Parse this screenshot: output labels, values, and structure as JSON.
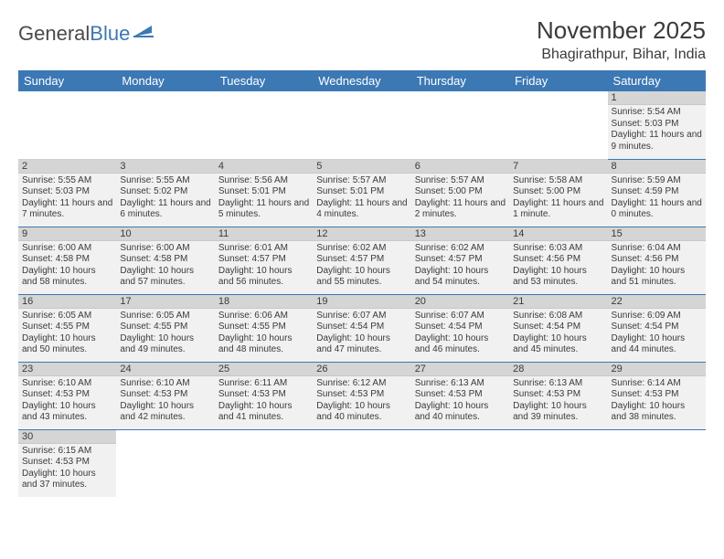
{
  "logo": {
    "text1": "General",
    "text2": "Blue"
  },
  "title": "November 2025",
  "location": "Bhagirathpur, Bihar, India",
  "dayHeaders": [
    "Sunday",
    "Monday",
    "Tuesday",
    "Wednesday",
    "Thursday",
    "Friday",
    "Saturday"
  ],
  "colors": {
    "headerBg": "#3c78b4",
    "cellBg": "#f1f1f1",
    "dayNumBg": "#d5d5d5",
    "border": "#3c78b4"
  },
  "weeks": [
    [
      null,
      null,
      null,
      null,
      null,
      null,
      {
        "n": "1",
        "sr": "Sunrise: 5:54 AM",
        "ss": "Sunset: 5:03 PM",
        "dl": "Daylight: 11 hours and 9 minutes."
      }
    ],
    [
      {
        "n": "2",
        "sr": "Sunrise: 5:55 AM",
        "ss": "Sunset: 5:03 PM",
        "dl": "Daylight: 11 hours and 7 minutes."
      },
      {
        "n": "3",
        "sr": "Sunrise: 5:55 AM",
        "ss": "Sunset: 5:02 PM",
        "dl": "Daylight: 11 hours and 6 minutes."
      },
      {
        "n": "4",
        "sr": "Sunrise: 5:56 AM",
        "ss": "Sunset: 5:01 PM",
        "dl": "Daylight: 11 hours and 5 minutes."
      },
      {
        "n": "5",
        "sr": "Sunrise: 5:57 AM",
        "ss": "Sunset: 5:01 PM",
        "dl": "Daylight: 11 hours and 4 minutes."
      },
      {
        "n": "6",
        "sr": "Sunrise: 5:57 AM",
        "ss": "Sunset: 5:00 PM",
        "dl": "Daylight: 11 hours and 2 minutes."
      },
      {
        "n": "7",
        "sr": "Sunrise: 5:58 AM",
        "ss": "Sunset: 5:00 PM",
        "dl": "Daylight: 11 hours and 1 minute."
      },
      {
        "n": "8",
        "sr": "Sunrise: 5:59 AM",
        "ss": "Sunset: 4:59 PM",
        "dl": "Daylight: 11 hours and 0 minutes."
      }
    ],
    [
      {
        "n": "9",
        "sr": "Sunrise: 6:00 AM",
        "ss": "Sunset: 4:58 PM",
        "dl": "Daylight: 10 hours and 58 minutes."
      },
      {
        "n": "10",
        "sr": "Sunrise: 6:00 AM",
        "ss": "Sunset: 4:58 PM",
        "dl": "Daylight: 10 hours and 57 minutes."
      },
      {
        "n": "11",
        "sr": "Sunrise: 6:01 AM",
        "ss": "Sunset: 4:57 PM",
        "dl": "Daylight: 10 hours and 56 minutes."
      },
      {
        "n": "12",
        "sr": "Sunrise: 6:02 AM",
        "ss": "Sunset: 4:57 PM",
        "dl": "Daylight: 10 hours and 55 minutes."
      },
      {
        "n": "13",
        "sr": "Sunrise: 6:02 AM",
        "ss": "Sunset: 4:57 PM",
        "dl": "Daylight: 10 hours and 54 minutes."
      },
      {
        "n": "14",
        "sr": "Sunrise: 6:03 AM",
        "ss": "Sunset: 4:56 PM",
        "dl": "Daylight: 10 hours and 53 minutes."
      },
      {
        "n": "15",
        "sr": "Sunrise: 6:04 AM",
        "ss": "Sunset: 4:56 PM",
        "dl": "Daylight: 10 hours and 51 minutes."
      }
    ],
    [
      {
        "n": "16",
        "sr": "Sunrise: 6:05 AM",
        "ss": "Sunset: 4:55 PM",
        "dl": "Daylight: 10 hours and 50 minutes."
      },
      {
        "n": "17",
        "sr": "Sunrise: 6:05 AM",
        "ss": "Sunset: 4:55 PM",
        "dl": "Daylight: 10 hours and 49 minutes."
      },
      {
        "n": "18",
        "sr": "Sunrise: 6:06 AM",
        "ss": "Sunset: 4:55 PM",
        "dl": "Daylight: 10 hours and 48 minutes."
      },
      {
        "n": "19",
        "sr": "Sunrise: 6:07 AM",
        "ss": "Sunset: 4:54 PM",
        "dl": "Daylight: 10 hours and 47 minutes."
      },
      {
        "n": "20",
        "sr": "Sunrise: 6:07 AM",
        "ss": "Sunset: 4:54 PM",
        "dl": "Daylight: 10 hours and 46 minutes."
      },
      {
        "n": "21",
        "sr": "Sunrise: 6:08 AM",
        "ss": "Sunset: 4:54 PM",
        "dl": "Daylight: 10 hours and 45 minutes."
      },
      {
        "n": "22",
        "sr": "Sunrise: 6:09 AM",
        "ss": "Sunset: 4:54 PM",
        "dl": "Daylight: 10 hours and 44 minutes."
      }
    ],
    [
      {
        "n": "23",
        "sr": "Sunrise: 6:10 AM",
        "ss": "Sunset: 4:53 PM",
        "dl": "Daylight: 10 hours and 43 minutes."
      },
      {
        "n": "24",
        "sr": "Sunrise: 6:10 AM",
        "ss": "Sunset: 4:53 PM",
        "dl": "Daylight: 10 hours and 42 minutes."
      },
      {
        "n": "25",
        "sr": "Sunrise: 6:11 AM",
        "ss": "Sunset: 4:53 PM",
        "dl": "Daylight: 10 hours and 41 minutes."
      },
      {
        "n": "26",
        "sr": "Sunrise: 6:12 AM",
        "ss": "Sunset: 4:53 PM",
        "dl": "Daylight: 10 hours and 40 minutes."
      },
      {
        "n": "27",
        "sr": "Sunrise: 6:13 AM",
        "ss": "Sunset: 4:53 PM",
        "dl": "Daylight: 10 hours and 40 minutes."
      },
      {
        "n": "28",
        "sr": "Sunrise: 6:13 AM",
        "ss": "Sunset: 4:53 PM",
        "dl": "Daylight: 10 hours and 39 minutes."
      },
      {
        "n": "29",
        "sr": "Sunrise: 6:14 AM",
        "ss": "Sunset: 4:53 PM",
        "dl": "Daylight: 10 hours and 38 minutes."
      }
    ],
    [
      {
        "n": "30",
        "sr": "Sunrise: 6:15 AM",
        "ss": "Sunset: 4:53 PM",
        "dl": "Daylight: 10 hours and 37 minutes."
      },
      null,
      null,
      null,
      null,
      null,
      null
    ]
  ]
}
